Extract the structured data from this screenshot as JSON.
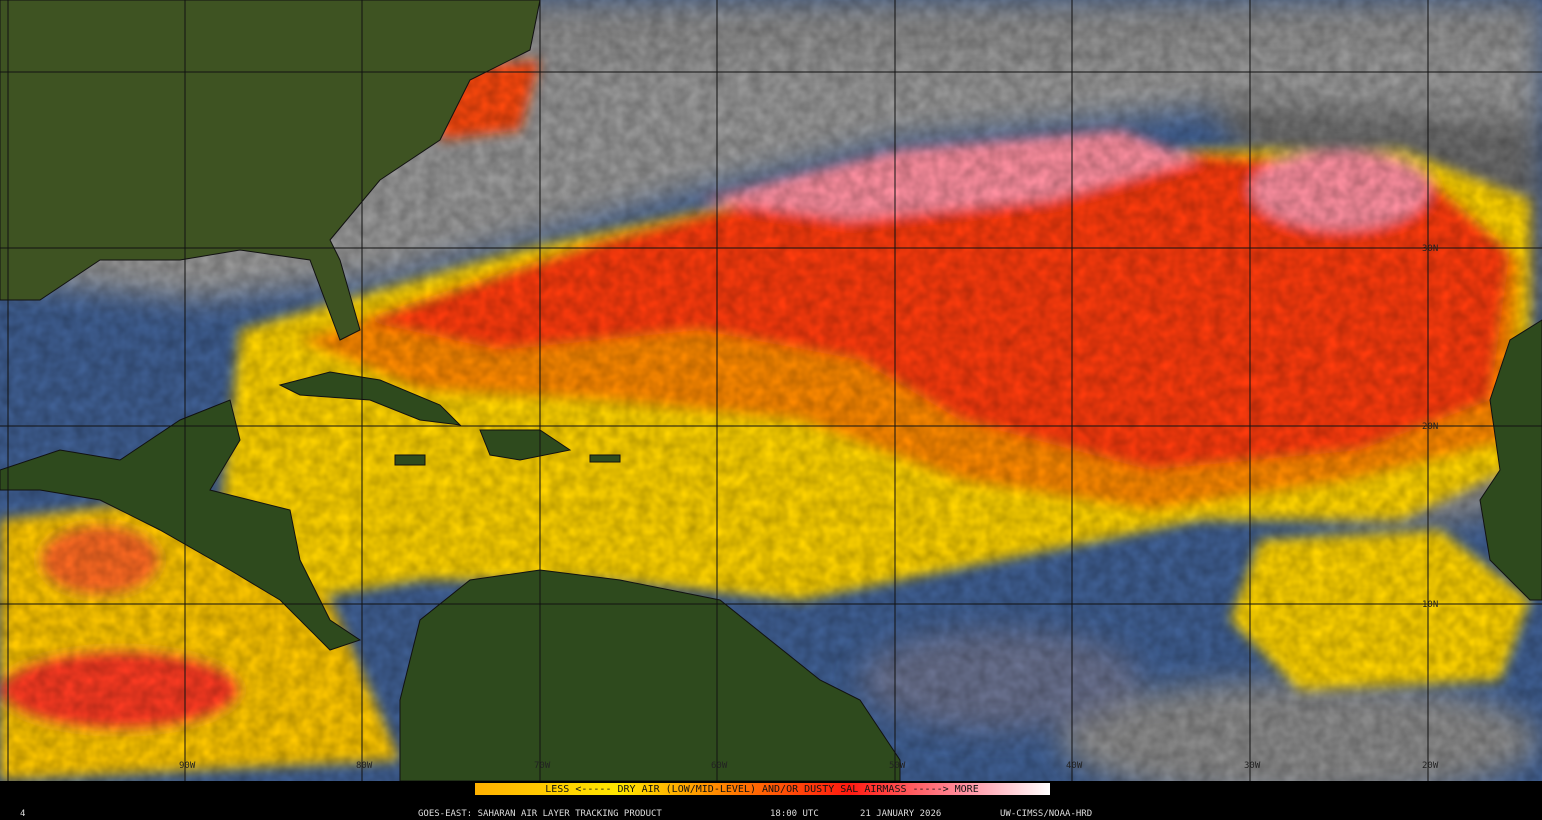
{
  "map": {
    "longitude_labels": [
      "90W",
      "80W",
      "70W",
      "60W",
      "50W",
      "40W",
      "30W",
      "20W"
    ],
    "latitude_labels": [
      "30N",
      "20N",
      "10N"
    ],
    "legend": {
      "text": "LESS <----- DRY AIR (LOW/MID-LEVEL) AND/OR DUSTY SAL AIRMASS -----> MORE"
    },
    "footer": {
      "frame": "4",
      "product": "GOES-EAST: SAHARAN AIR LAYER TRACKING PRODUCT",
      "time": "18:00 UTC",
      "date": "21 JANUARY 2026",
      "credit": "UW-CIMSS/NOAA-HRD"
    }
  }
}
